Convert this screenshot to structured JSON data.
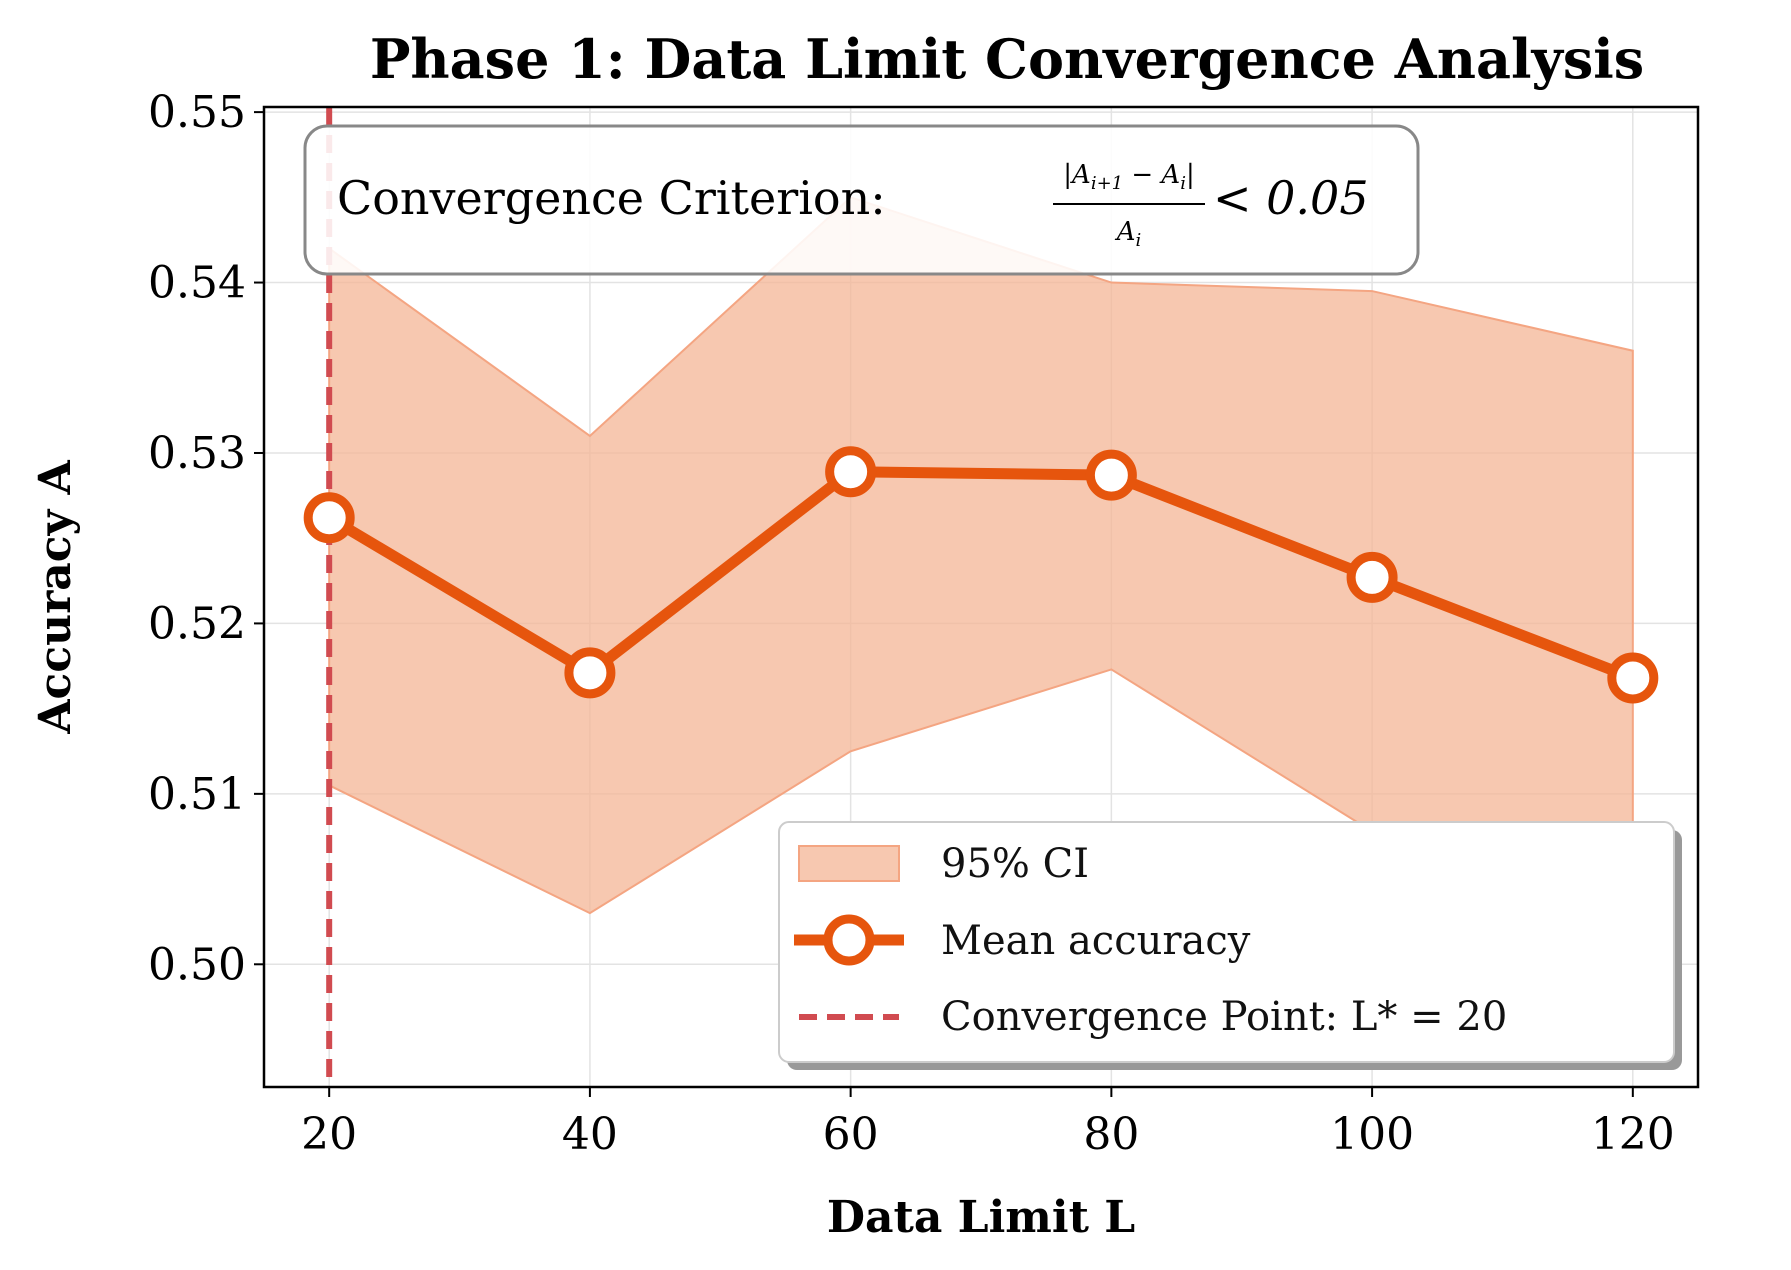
{
  "chart_data": {
    "type": "line",
    "title": "Phase 1: Data Limit Convergence Analysis",
    "xlabel": "Data Limit L",
    "ylabel": "Accuracy A",
    "xlim": [
      15,
      125
    ],
    "ylim": [
      0.4928,
      0.5503
    ],
    "x_ticks": [
      20,
      40,
      60,
      80,
      100,
      120
    ],
    "x_tick_labels": [
      "20",
      "40",
      "60",
      "80",
      "100",
      "120"
    ],
    "y_ticks": [
      0.5,
      0.51,
      0.52,
      0.53,
      0.54,
      0.55
    ],
    "y_tick_labels": [
      "0.50",
      "0.51",
      "0.52",
      "0.53",
      "0.54",
      "0.55"
    ],
    "grid": true,
    "x": [
      20,
      40,
      60,
      80,
      100,
      120
    ],
    "series": [
      {
        "name": "Mean accuracy",
        "values": [
          0.5262,
          0.5171,
          0.5289,
          0.5287,
          0.5227,
          0.5168
        ],
        "color": "#e6550d",
        "marker": "circle-hollow"
      }
    ],
    "ci_band": {
      "name": "95% CI",
      "lower": [
        0.5105,
        0.503,
        0.5125,
        0.5173,
        0.5078,
        0.506
      ],
      "upper": [
        0.542,
        0.531,
        0.545,
        0.54,
        0.5395,
        0.536
      ],
      "color": "#f4b596"
    },
    "vline": {
      "name": "Convergence Point: L* = 20",
      "x": 20,
      "color": "#d14b50"
    },
    "annotation": {
      "prefix": "Convergence Criterion:",
      "numerator": "|A",
      "num_sub1": "i+1",
      "num_mid": " − A",
      "num_sub2": "i",
      "num_end": "|",
      "denominator": "A",
      "den_sub": "i",
      "relation": "< 0.05"
    },
    "legend": {
      "placement": "lower-right",
      "entries": [
        "95% CI",
        "Mean accuracy",
        "Convergence Point: L* = 20"
      ]
    }
  }
}
